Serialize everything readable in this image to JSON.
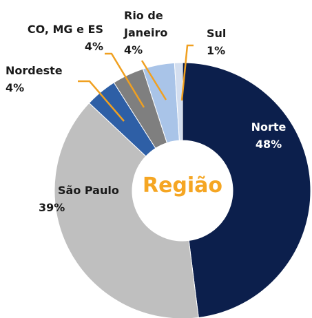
{
  "chart_data": {
    "type": "donut",
    "center_label": "Região",
    "categories": [
      "Norte",
      "São Paulo",
      "Nordeste",
      "CO, MG e ES",
      "Rio de Janeiro",
      "Sul"
    ],
    "values": [
      48,
      39,
      4,
      4,
      4,
      1
    ],
    "value_labels": [
      "48%",
      "39%",
      "4%",
      "4%",
      "4%",
      "1%"
    ],
    "colors": [
      "#0c1f4c",
      "#bfbfbf",
      "#2e5fa6",
      "#7f7f7f",
      "#a9c4e8",
      "#d3deef"
    ]
  }
}
